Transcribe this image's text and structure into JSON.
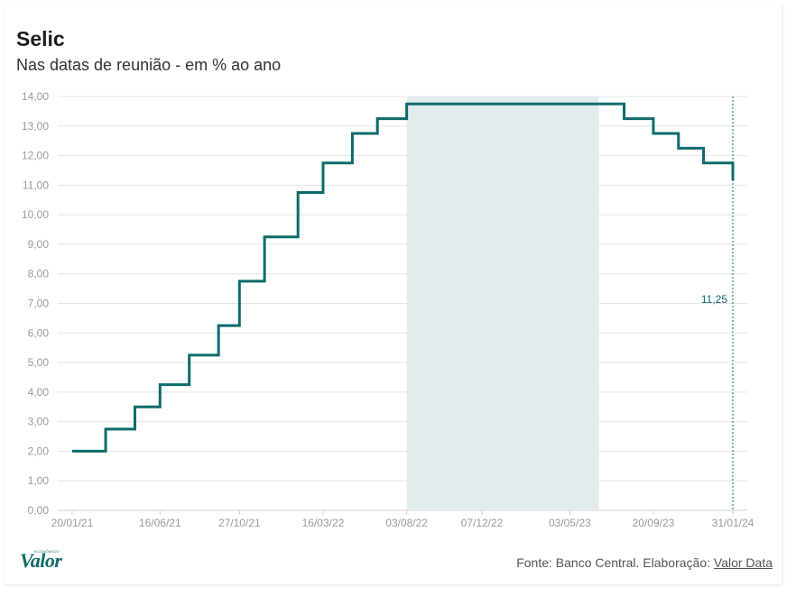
{
  "chart_data": {
    "type": "line",
    "step": "after",
    "title": "Selic",
    "subtitle": "Nas datas de reunião - em % ao ano",
    "xlabel": "",
    "ylabel": "",
    "ylim": [
      0,
      14
    ],
    "yticks": [
      "0,00",
      "1,00",
      "2,00",
      "3,00",
      "4,00",
      "5,00",
      "6,00",
      "7,00",
      "8,00",
      "9,00",
      "10,00",
      "11,00",
      "12,00",
      "13,00",
      "14,00"
    ],
    "xticks": [
      "20/01/21",
      "16/06/21",
      "27/10/21",
      "16/03/22",
      "03/08/22",
      "07/12/22",
      "03/05/23",
      "20/09/23",
      "31/01/24"
    ],
    "x": [
      "20/01/21",
      "17/03/21",
      "05/05/21",
      "16/06/21",
      "04/08/21",
      "22/09/21",
      "27/10/21",
      "08/12/21",
      "02/02/22",
      "16/03/22",
      "04/05/22",
      "15/06/22",
      "03/08/22",
      "21/09/22",
      "26/10/22",
      "07/12/22",
      "01/02/23",
      "22/03/23",
      "03/05/23",
      "21/06/23",
      "02/08/23",
      "20/09/23",
      "01/11/23",
      "13/12/23",
      "31/01/24"
    ],
    "series": [
      {
        "values": [
          2.0,
          2.75,
          3.5,
          4.25,
          5.25,
          6.25,
          7.75,
          9.25,
          10.75,
          11.75,
          12.75,
          13.25,
          13.75,
          13.75,
          13.75,
          13.75,
          13.75,
          13.75,
          13.75,
          13.75,
          13.25,
          12.75,
          12.25,
          11.75,
          11.25
        ],
        "color": "#0e6b6b"
      }
    ],
    "highlight": {
      "from": "03/08/22",
      "to": "21/06/23",
      "color": "#e3ecec"
    },
    "callout": {
      "x": "31/01/24",
      "label": "11,25"
    },
    "grid": true,
    "legend": "none"
  },
  "footer": {
    "logo": "Valor",
    "logo_small": "ECONÔMICO",
    "source_prefix": "Fonte: Banco Central. Elaboração:",
    "source_link": "Valor Data"
  }
}
